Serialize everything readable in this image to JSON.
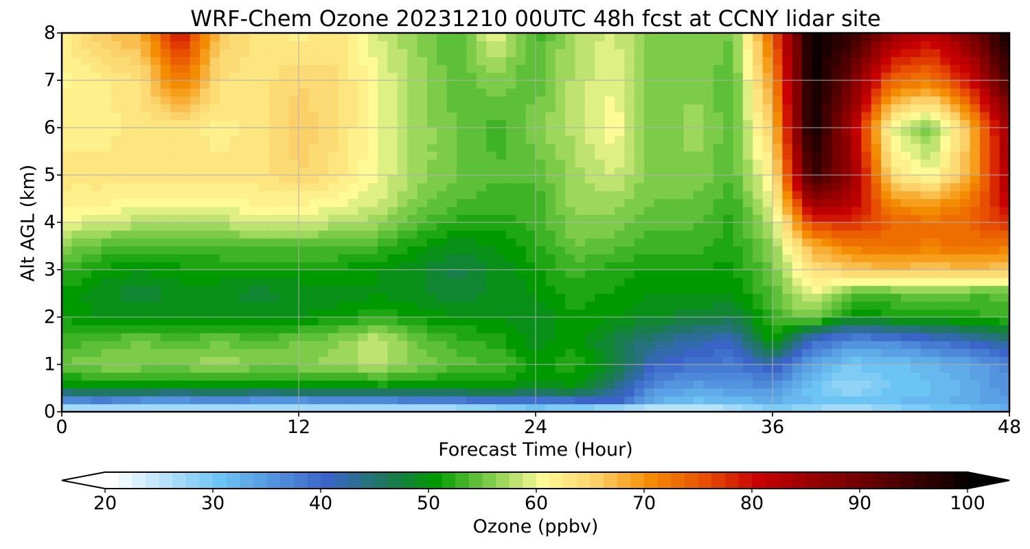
{
  "chart_data": {
    "type": "heatmap",
    "title": "WRF-Chem Ozone  20231210 00UTC 48h fcst at CCNY lidar site",
    "xlabel": "Forecast Time (Hour)",
    "ylabel": "Alt AGL (km)",
    "xlim": [
      0,
      48
    ],
    "ylim": [
      0,
      8
    ],
    "xticks": [
      0,
      12,
      24,
      36,
      48
    ],
    "yticks": [
      0,
      1,
      2,
      3,
      4,
      5,
      6,
      7,
      8
    ],
    "grid": true,
    "x": [
      0,
      2,
      4,
      6,
      8,
      10,
      12,
      14,
      16,
      18,
      20,
      22,
      24,
      26,
      28,
      30,
      32,
      34,
      36,
      38,
      40,
      42,
      44,
      46,
      48
    ],
    "y": [
      0,
      0.25,
      0.5,
      1,
      1.5,
      2,
      2.5,
      3,
      3.5,
      4,
      4.5,
      5,
      6,
      7,
      8
    ],
    "z": [
      [
        22,
        22,
        22,
        22,
        22,
        22,
        22,
        22,
        22,
        22,
        22,
        23,
        26,
        24,
        22,
        22,
        22,
        24,
        28,
        26,
        25,
        27,
        29,
        30,
        32
      ],
      [
        36,
        38,
        36,
        36,
        37,
        36,
        36,
        37,
        37,
        38,
        38,
        40,
        39,
        40,
        41,
        33,
        31,
        32,
        33,
        31,
        30,
        31,
        32,
        33,
        35
      ],
      [
        49,
        50,
        50,
        49,
        50,
        49,
        50,
        49,
        50,
        50,
        50,
        50,
        49,
        50,
        44,
        36,
        34,
        35,
        36,
        30,
        27,
        30,
        31,
        33,
        36
      ],
      [
        55,
        56,
        56,
        56,
        57,
        56,
        56,
        57,
        58,
        56,
        54,
        54,
        51,
        52,
        48,
        41,
        39,
        38,
        42,
        34,
        30,
        31,
        32,
        34,
        37
      ],
      [
        53,
        54,
        55,
        54,
        55,
        54,
        55,
        56,
        59,
        55,
        53,
        52,
        49,
        51,
        47,
        44,
        42,
        41,
        51,
        40,
        36,
        37,
        39,
        41,
        44
      ],
      [
        51,
        50,
        50,
        50,
        50,
        50,
        50,
        51,
        52,
        51,
        50,
        50,
        49,
        51,
        50,
        49,
        48,
        47,
        53,
        56,
        50,
        51,
        52,
        52,
        53
      ],
      [
        51,
        49,
        48,
        49,
        49,
        48,
        49,
        49,
        50,
        49,
        48,
        49,
        50,
        52,
        51,
        50,
        50,
        50,
        54,
        60,
        54,
        54,
        55,
        54,
        54
      ],
      [
        53,
        51,
        50,
        51,
        51,
        51,
        51,
        51,
        50,
        49,
        47,
        49,
        51,
        53,
        52,
        51,
        51,
        51,
        55,
        64,
        66,
        67,
        66,
        67,
        66
      ],
      [
        56,
        54,
        53,
        53,
        54,
        54,
        54,
        54,
        53,
        51,
        49,
        50,
        52,
        55,
        54,
        53,
        53,
        52,
        56,
        68,
        72,
        73,
        72,
        73,
        72
      ],
      [
        60,
        59,
        58,
        58,
        58,
        59,
        59,
        58,
        57,
        54,
        52,
        52,
        53,
        56,
        56,
        54,
        54,
        52,
        58,
        77,
        78,
        74,
        73,
        74,
        78
      ],
      [
        62,
        62,
        61,
        61,
        61,
        62,
        62,
        61,
        59,
        56,
        54,
        53,
        53,
        57,
        57,
        55,
        55,
        53,
        60,
        88,
        84,
        70,
        68,
        72,
        82
      ],
      [
        63,
        63,
        63,
        63,
        63,
        63,
        65,
        63,
        60,
        57,
        55,
        54,
        54,
        57,
        59,
        55,
        56,
        54,
        62,
        96,
        86,
        64,
        60,
        68,
        84
      ],
      [
        62,
        62,
        63,
        63,
        62,
        63,
        66,
        64,
        60,
        57,
        55,
        53,
        56,
        58,
        61,
        55,
        57,
        54,
        66,
        100,
        84,
        60,
        55,
        67,
        86
      ],
      [
        61,
        62,
        64,
        73,
        64,
        63,
        65,
        64,
        60,
        57,
        54,
        56,
        54,
        58,
        60,
        55,
        56,
        54,
        70,
        100,
        90,
        74,
        72,
        80,
        94
      ],
      [
        62,
        66,
        68,
        80,
        66,
        63,
        62,
        63,
        59,
        56,
        54,
        60,
        53,
        58,
        59,
        55,
        56,
        55,
        74,
        100,
        96,
        86,
        82,
        88,
        100
      ]
    ],
    "colorbar": {
      "label": "Ozone  (ppbv)",
      "min": 20,
      "max": 100,
      "ticks": [
        20,
        30,
        40,
        50,
        60,
        70,
        80,
        90,
        100
      ],
      "extend": "both",
      "colormap": [
        {
          "v": 20,
          "c": "#ffffff"
        },
        {
          "v": 30,
          "c": "#6cc4f4"
        },
        {
          "v": 40,
          "c": "#3a64c8"
        },
        {
          "v": 46,
          "c": "#1a7a50"
        },
        {
          "v": 50,
          "c": "#009a00"
        },
        {
          "v": 55,
          "c": "#7ccc4a"
        },
        {
          "v": 60,
          "c": "#fffa96"
        },
        {
          "v": 65,
          "c": "#fbd068"
        },
        {
          "v": 70,
          "c": "#f48c00"
        },
        {
          "v": 75,
          "c": "#e85000"
        },
        {
          "v": 80,
          "c": "#c80000"
        },
        {
          "v": 90,
          "c": "#6a0000"
        },
        {
          "v": 100,
          "c": "#000000"
        }
      ]
    }
  }
}
